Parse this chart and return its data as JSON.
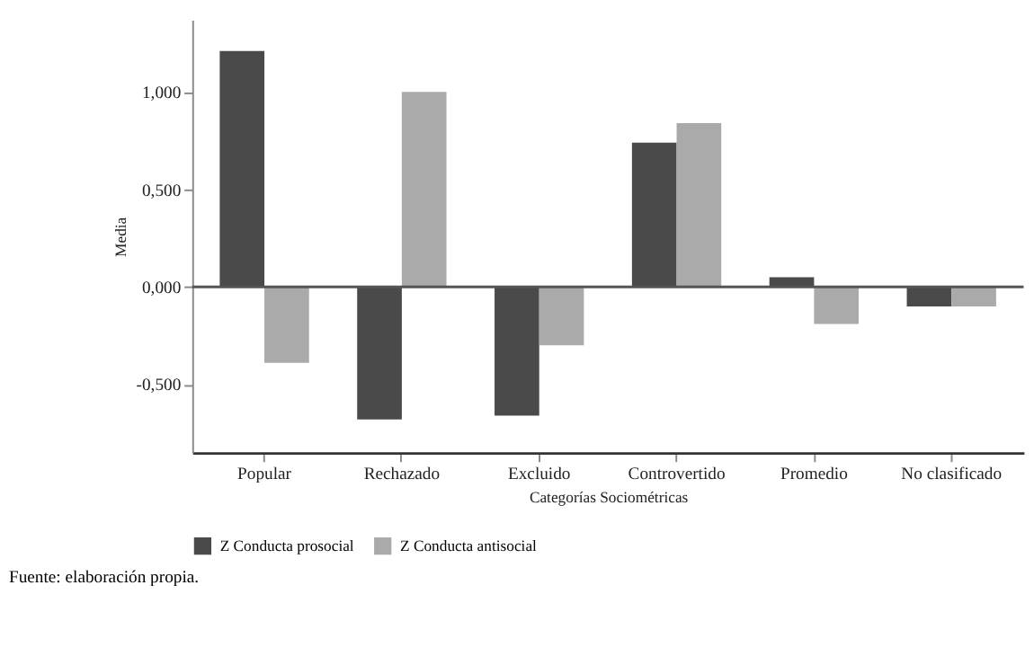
{
  "chart_data": {
    "type": "bar",
    "categories": [
      "Popular",
      "Rechazado",
      "Excluido",
      "Controvertido",
      "Promedio",
      "No clasificado"
    ],
    "series": [
      {
        "name": "Z Conducta prosocial",
        "color": "#4a4a4a",
        "values": [
          1.21,
          -0.68,
          -0.66,
          0.74,
          0.05,
          -0.1
        ]
      },
      {
        "name": "Z Conducta antisocial",
        "color": "#aaaaaa",
        "values": [
          -0.39,
          1.0,
          -0.3,
          0.84,
          -0.19,
          -0.1
        ]
      }
    ],
    "xlabel": "Categorías Sociométricas",
    "ylabel": "Media",
    "ylim": [
      -0.85,
      1.37
    ],
    "yticks": [
      {
        "value": -0.5,
        "label": "-0,500"
      },
      {
        "value": 0,
        "label": "0,000"
      },
      {
        "value": 0.5,
        "label": "0,500"
      },
      {
        "value": 1.0,
        "label": "1,000"
      }
    ],
    "grid": false,
    "legend": "bottom",
    "ref_lines": [
      {
        "axis": "y",
        "value": 0,
        "color": "#555555"
      }
    ],
    "annotations": [
      "Fuente: elaboración propia."
    ]
  }
}
